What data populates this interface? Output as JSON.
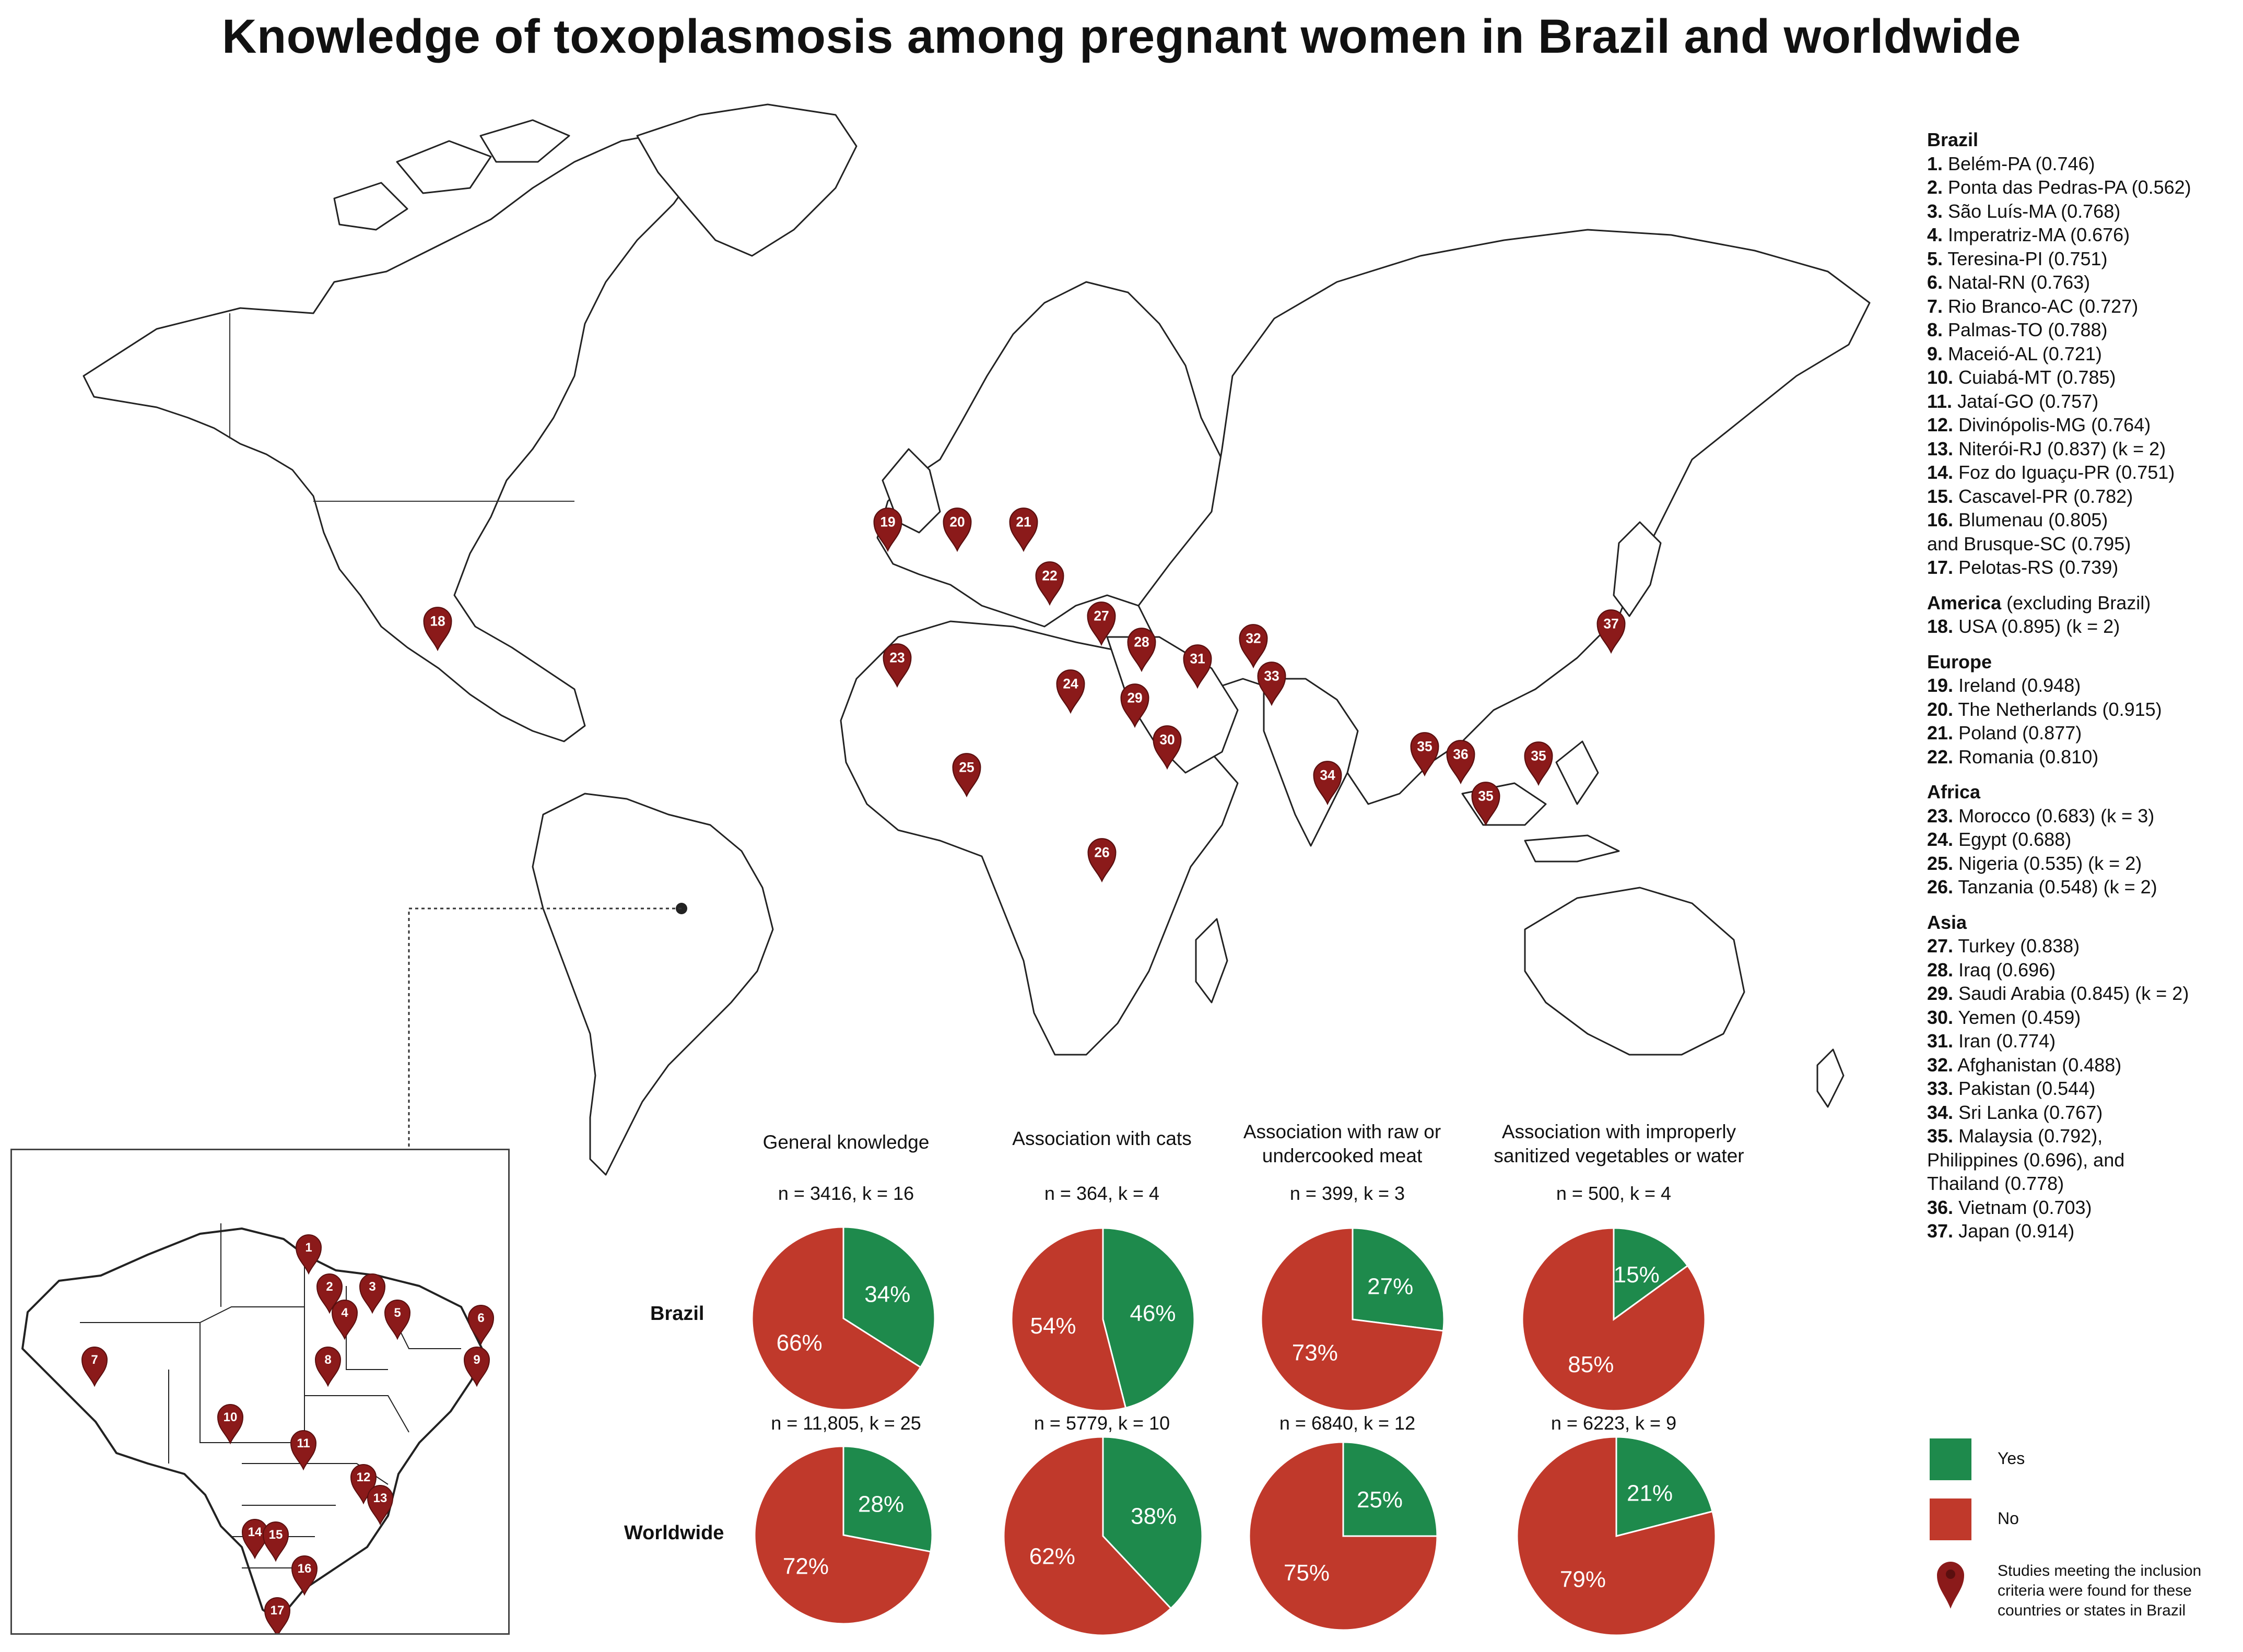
{
  "title": "Knowledge of toxoplasmosis among pregnant women in Brazil and worldwide",
  "legend_groups": [
    {
      "heading": "Brazil",
      "heading_note": "",
      "items": [
        {
          "num": "1.",
          "label": "Belém-PA (0.746)"
        },
        {
          "num": "2.",
          "label": "Ponta das Pedras-PA (0.562)"
        },
        {
          "num": "3.",
          "label": "São Luís-MA (0.768)"
        },
        {
          "num": "4.",
          "label": "Imperatriz-MA (0.676)"
        },
        {
          "num": "5.",
          "label": "Teresina-PI (0.751)"
        },
        {
          "num": "6.",
          "label": "Natal-RN (0.763)"
        },
        {
          "num": "7.",
          "label": "Rio Branco-AC (0.727)"
        },
        {
          "num": "8.",
          "label": "Palmas-TO (0.788)"
        },
        {
          "num": "9.",
          "label": "Maceió-AL (0.721)"
        },
        {
          "num": "10.",
          "label": "Cuiabá-MT (0.785)"
        },
        {
          "num": "11.",
          "label": "Jataí-GO (0.757)"
        },
        {
          "num": "12.",
          "label": "Divinópolis-MG (0.764)"
        },
        {
          "num": "13.",
          "label": "Niterói-RJ (0.837) (k = 2)"
        },
        {
          "num": "14.",
          "label": "Foz do Iguaçu-PR (0.751)"
        },
        {
          "num": "15.",
          "label": "Cascavel-PR (0.782)"
        },
        {
          "num": "16.",
          "label": "Blumenau (0.805)"
        },
        {
          "num": "",
          "label": "and Brusque-SC (0.795)"
        },
        {
          "num": "17.",
          "label": "Pelotas-RS (0.739)"
        }
      ]
    },
    {
      "heading": "America",
      "heading_note": " (excluding Brazil)",
      "items": [
        {
          "num": "18.",
          "label": "USA (0.895) (k = 2)"
        }
      ]
    },
    {
      "heading": "Europe",
      "heading_note": "",
      "items": [
        {
          "num": "19.",
          "label": "Ireland (0.948)"
        },
        {
          "num": "20.",
          "label": "The Netherlands (0.915)"
        },
        {
          "num": "21.",
          "label": "Poland (0.877)"
        },
        {
          "num": "22.",
          "label": "Romania (0.810)"
        }
      ]
    },
    {
      "heading": "Africa",
      "heading_note": "",
      "items": [
        {
          "num": "23.",
          "label": "Morocco (0.683) (k = 3)"
        },
        {
          "num": "24.",
          "label": "Egypt (0.688)"
        },
        {
          "num": "25.",
          "label": "Nigeria (0.535) (k = 2)"
        },
        {
          "num": "26.",
          "label": "Tanzania (0.548) (k = 2)"
        }
      ]
    },
    {
      "heading": "Asia",
      "heading_note": "",
      "items": [
        {
          "num": "27.",
          "label": "Turkey (0.838)"
        },
        {
          "num": "28.",
          "label": "Iraq (0.696)"
        },
        {
          "num": "29.",
          "label": "Saudi Arabia (0.845) (k = 2)"
        },
        {
          "num": "30.",
          "label": "Yemen (0.459)"
        },
        {
          "num": "31.",
          "label": "Iran (0.774)"
        },
        {
          "num": "32.",
          "label": "Afghanistan (0.488)"
        },
        {
          "num": "33.",
          "label": "Pakistan (0.544)"
        },
        {
          "num": "34.",
          "label": "Sri Lanka (0.767)"
        },
        {
          "num": "35.",
          "label": "Malaysia (0.792),"
        },
        {
          "num": "",
          "label": "Philippines (0.696), and"
        },
        {
          "num": "",
          "label": "Thailand (0.778)"
        },
        {
          "num": "36.",
          "label": "Vietnam (0.703)"
        },
        {
          "num": "37.",
          "label": "Japan (0.914)"
        }
      ]
    }
  ],
  "world_pins": [
    "18",
    "19",
    "20",
    "21",
    "22",
    "23",
    "24",
    "25",
    "26",
    "27",
    "28",
    "29",
    "30",
    "31",
    "32",
    "33",
    "34",
    "35",
    "36",
    "35",
    "35",
    "37"
  ],
  "brazil_pins": [
    "1",
    "2",
    "3",
    "4",
    "5",
    "6",
    "7",
    "8",
    "9",
    "10",
    "11",
    "12",
    "13",
    "14",
    "15",
    "16",
    "17"
  ],
  "row_labels": {
    "brazil": "Brazil",
    "worldwide": "Worldwide"
  },
  "key": {
    "yes": "Yes",
    "no": "No",
    "pin": "Studies meeting the inclusion criteria were found for these countries or states in Brazil",
    "yes_color": "#1e8a4c",
    "no_color": "#c0392b",
    "pin_color": "#8b1a1a"
  },
  "chart_data": {
    "type": "pie",
    "title": "Knowledge of toxoplasmosis among pregnant women in Brazil and worldwide",
    "categories": [
      "Yes",
      "No"
    ],
    "colors": {
      "Yes": "#1e8a4c",
      "No": "#c0392b"
    },
    "columns": [
      {
        "title": "General knowledge",
        "brazil": {
          "n_label": "n = 3416, k = 16",
          "yes": 34,
          "no": 66
        },
        "worldwide": {
          "n_label": "n = 11,805, k = 25",
          "yes": 28,
          "no": 72
        }
      },
      {
        "title": "Association with cats",
        "brazil": {
          "n_label": "n = 364, k = 4",
          "yes": 46,
          "no": 54
        },
        "worldwide": {
          "n_label": "n = 5779, k = 10",
          "yes": 38,
          "no": 62
        }
      },
      {
        "title": "Association with raw or undercooked meat",
        "brazil": {
          "n_label": "n = 399, k = 3",
          "yes": 27,
          "no": 73
        },
        "worldwide": {
          "n_label": "n = 6840, k = 12",
          "yes": 25,
          "no": 75
        }
      },
      {
        "title": "Association with improperly sanitized vegetables or water",
        "brazil": {
          "n_label": "n = 500, k = 4",
          "yes": 15,
          "no": 85
        },
        "worldwide": {
          "n_label": "n = 6223, k = 9",
          "yes": 21,
          "no": 79
        }
      }
    ]
  }
}
